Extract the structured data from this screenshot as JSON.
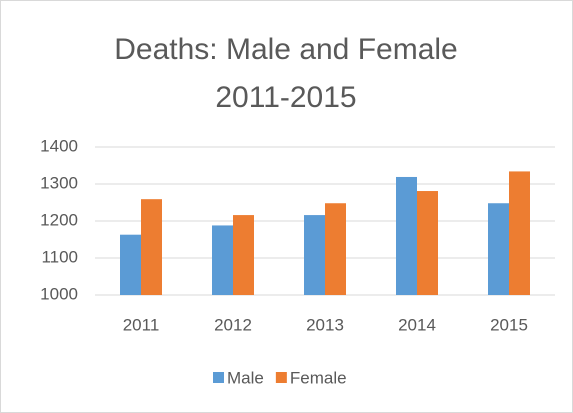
{
  "chart_data": {
    "type": "bar",
    "title": "Deaths: Male and Female 2011-2015",
    "categories": [
      "2011",
      "2012",
      "2013",
      "2014",
      "2015"
    ],
    "series": [
      {
        "name": "Male",
        "color": "#5b9bd5",
        "values": [
          1163,
          1188,
          1216,
          1319,
          1248
        ]
      },
      {
        "name": "Female",
        "color": "#ed7d31",
        "values": [
          1259,
          1216,
          1248,
          1281,
          1334
        ]
      }
    ],
    "ylim": [
      1000,
      1400
    ],
    "yticks": [
      1000,
      1100,
      1200,
      1300,
      1400
    ],
    "grid": true,
    "legend": "bottom"
  }
}
